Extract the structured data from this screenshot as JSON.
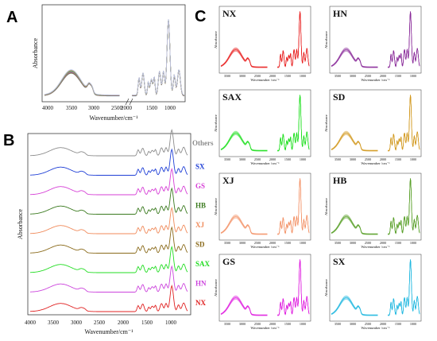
{
  "panels": {
    "A": {
      "letter": "A",
      "xlabel": "Wavenumber/cm⁻¹",
      "ylabel": "Absorbance",
      "xticks": [
        "4000",
        "3500",
        "3000",
        "2500",
        "2000",
        "1500",
        "1000"
      ]
    },
    "B": {
      "letter": "B",
      "xlabel": "Wavenumber/cm⁻¹",
      "ylabel": "Absorbance",
      "xticks": [
        "4000",
        "3500",
        "3000",
        "2500",
        "2000",
        "1500",
        "1000"
      ]
    },
    "C": {
      "letter": "C",
      "xlabel": "Wavenumber /cm⁻¹",
      "ylabel": "Absorbance",
      "xticks": [
        "3500",
        "3000",
        "2500",
        "2000",
        "1500",
        "1000"
      ]
    }
  },
  "chart_data": [
    {
      "type": "line",
      "panel": "A",
      "xlabel": "Wavenumber/cm⁻¹",
      "ylabel": "Absorbance",
      "xlim": [
        4000,
        600
      ],
      "x_reversed": true,
      "axis_break": [
        2200,
        1900
      ],
      "note": "many overlaid sample spectra"
    },
    {
      "type": "line",
      "panel": "B",
      "xlabel": "Wavenumber/cm⁻¹",
      "ylabel": "Absorbance",
      "xlim": [
        4000,
        600
      ],
      "x_reversed": true,
      "legend_placement": "right",
      "series": [
        {
          "name": "Others",
          "color": "#8c8c8c"
        },
        {
          "name": "SX",
          "color": "#1f3fd6"
        },
        {
          "name": "GS",
          "color": "#d63fd6"
        },
        {
          "name": "HB",
          "color": "#3a7a1e"
        },
        {
          "name": "XJ",
          "color": "#f08a5a"
        },
        {
          "name": "SD",
          "color": "#8a6a1a"
        },
        {
          "name": "SAX",
          "color": "#22dd22"
        },
        {
          "name": "HN",
          "color": "#cc44dd"
        },
        {
          "name": "NX",
          "color": "#e02020"
        }
      ]
    },
    {
      "type": "line",
      "panel": "C",
      "xlabel": "Wavenumber /cm⁻¹",
      "ylabel": "Absorbance",
      "xlim": [
        4000,
        600
      ],
      "x_reversed": true,
      "subplots": [
        {
          "name": "NX",
          "color": "#e82020"
        },
        {
          "name": "HN",
          "color": "#8a2a9a"
        },
        {
          "name": "SAX",
          "color": "#20e020"
        },
        {
          "name": "SD",
          "color": "#d29a1e"
        },
        {
          "name": "XJ",
          "color": "#f3956a"
        },
        {
          "name": "HB",
          "color": "#58a028"
        },
        {
          "name": "GS",
          "color": "#e020e0"
        },
        {
          "name": "SX",
          "color": "#20b8e0"
        }
      ]
    }
  ]
}
